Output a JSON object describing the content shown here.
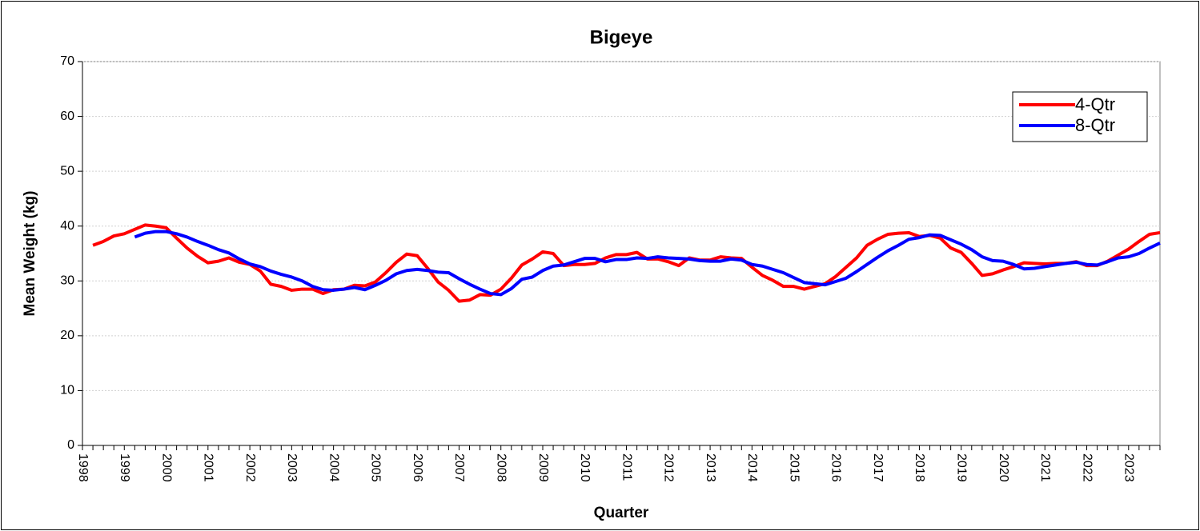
{
  "chart_data": {
    "type": "line",
    "title": "Bigeye",
    "x_label": "Quarter",
    "y_label": "Mean Weight (kg)",
    "categories": [
      "1998",
      null,
      null,
      null,
      "1999",
      null,
      null,
      null,
      "2000",
      null,
      null,
      null,
      "2001",
      null,
      null,
      null,
      "2002",
      null,
      null,
      null,
      "2003",
      null,
      null,
      null,
      "2004",
      null,
      null,
      null,
      "2005",
      null,
      null,
      null,
      "2006",
      null,
      null,
      null,
      "2007",
      null,
      null,
      null,
      "2008",
      null,
      null,
      null,
      "2009",
      null,
      null,
      null,
      "2010",
      null,
      null,
      null,
      "2011",
      null,
      null,
      null,
      "2012",
      null,
      null,
      null,
      "2013",
      null,
      null,
      null,
      "2014",
      null,
      null,
      null,
      "2015",
      null,
      null,
      null,
      "2016",
      null,
      null,
      null,
      "2017",
      null,
      null,
      null,
      "2018",
      null,
      null,
      null,
      "2019",
      null,
      null,
      null,
      "2020",
      null,
      null,
      null,
      "2021",
      null,
      null,
      null,
      "2022",
      null,
      null,
      null,
      "2023",
      null,
      null,
      null
    ],
    "series": [
      {
        "name": "4-Qtr",
        "color": "#ff0000",
        "values": [
          null,
          36.5,
          37.2,
          38.2,
          38.6,
          39.4,
          40.2,
          40.0,
          39.7,
          37.8,
          36.0,
          34.5,
          33.3,
          33.6,
          34.2,
          33.4,
          33.0,
          31.8,
          29.4,
          29.0,
          28.3,
          28.5,
          28.5,
          27.7,
          28.4,
          28.5,
          29.2,
          29.1,
          29.8,
          31.5,
          33.4,
          34.9,
          34.6,
          32.3,
          29.8,
          28.3,
          26.3,
          26.5,
          27.5,
          27.4,
          28.5,
          30.5,
          32.9,
          34.0,
          35.3,
          35.0,
          32.8,
          33.0,
          33.0,
          33.2,
          34.2,
          34.8,
          34.8,
          35.2,
          34.0,
          34.0,
          33.5,
          32.8,
          34.2,
          33.8,
          33.8,
          34.4,
          34.2,
          34.1,
          32.5,
          31.0,
          30.1,
          29.0,
          29.0,
          28.5,
          29.0,
          29.5,
          30.8,
          32.5,
          34.2,
          36.5,
          37.6,
          38.5,
          38.7,
          38.8,
          38.1,
          38.3,
          37.8,
          36.0,
          35.2,
          33.2,
          31.0,
          31.3,
          32.0,
          32.6,
          33.3,
          33.2,
          33.1,
          33.2,
          33.2,
          33.5,
          32.8,
          32.8,
          33.6,
          34.7,
          35.8,
          37.2,
          38.5,
          38.8
        ]
      },
      {
        "name": "8-Qtr",
        "color": "#0000ff",
        "values": [
          null,
          null,
          null,
          null,
          null,
          38.0,
          38.7,
          39.0,
          39.0,
          38.6,
          38.0,
          37.2,
          36.5,
          35.7,
          35.1,
          34.0,
          33.1,
          32.6,
          31.8,
          31.2,
          30.7,
          30.0,
          29.0,
          28.4,
          28.3,
          28.5,
          28.8,
          28.4,
          29.2,
          30.1,
          31.3,
          31.9,
          32.1,
          31.9,
          31.6,
          31.5,
          30.4,
          29.4,
          28.5,
          27.7,
          27.5,
          28.6,
          30.3,
          30.7,
          31.9,
          32.7,
          32.9,
          33.5,
          34.1,
          34.1,
          33.5,
          33.9,
          33.9,
          34.2,
          34.1,
          34.4,
          34.2,
          34.1,
          34.0,
          33.7,
          33.6,
          33.6,
          34.0,
          33.8,
          33.0,
          32.7,
          32.1,
          31.5,
          30.6,
          29.7,
          29.5,
          29.3,
          29.9,
          30.5,
          31.7,
          33.0,
          34.3,
          35.5,
          36.5,
          37.6,
          37.9,
          38.4,
          38.3,
          37.5,
          36.7,
          35.7,
          34.4,
          33.7,
          33.6,
          33.0,
          32.2,
          32.3,
          32.6,
          32.9,
          33.2,
          33.4,
          33.0,
          32.9,
          33.5,
          34.2,
          34.4,
          35.0,
          36.0,
          36.9
        ]
      }
    ],
    "ylim": [
      0,
      70
    ],
    "yticks": [
      0,
      10,
      20,
      30,
      40,
      50,
      60,
      70
    ],
    "grid": true,
    "legend": "upper right"
  }
}
